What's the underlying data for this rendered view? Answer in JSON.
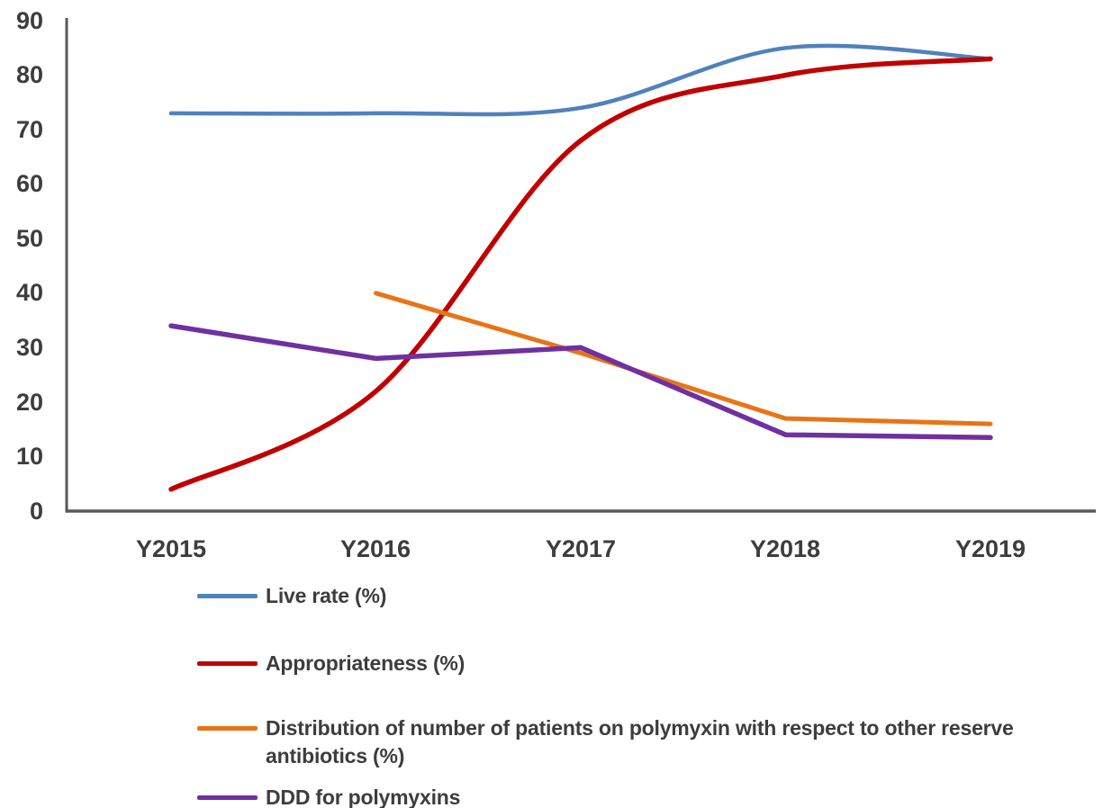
{
  "chart_data": {
    "type": "line",
    "title": "",
    "xlabel": "",
    "ylabel": "",
    "categories": [
      "Y2015",
      "Y2016",
      "Y2017",
      "Y2018",
      "Y2019"
    ],
    "y_ticks": [
      "90",
      "80",
      "70",
      "60",
      "50",
      "40",
      "30",
      "20",
      "10",
      "0"
    ],
    "ylim": [
      0,
      90
    ],
    "y_tick_step": 10,
    "grid": false,
    "legend_position": "bottom-left",
    "axis_color": "#595959",
    "text_color": "#3d3d3d",
    "series": [
      {
        "name": "Live rate (%)",
        "color": "#4F81BD",
        "smooth": true,
        "stroke_width": 4.5,
        "values": [
          73,
          73,
          74,
          85,
          83
        ]
      },
      {
        "name": "Appropriateness (%)",
        "color": "#C00000",
        "smooth": true,
        "stroke_width": 5.5,
        "values": [
          4,
          22,
          68,
          80,
          83
        ]
      },
      {
        "name": "Distribution of number of patients on polymyxin with respect to other reserve antibiotics (%)",
        "color": "#E87417",
        "smooth": false,
        "stroke_width": 5,
        "values": [
          null,
          40,
          29,
          17,
          16
        ]
      },
      {
        "name": "DDD for polymyxins",
        "color": "#7030A0",
        "smooth": false,
        "stroke_width": 5.5,
        "values": [
          34,
          28,
          30,
          14,
          13.5
        ]
      }
    ]
  }
}
